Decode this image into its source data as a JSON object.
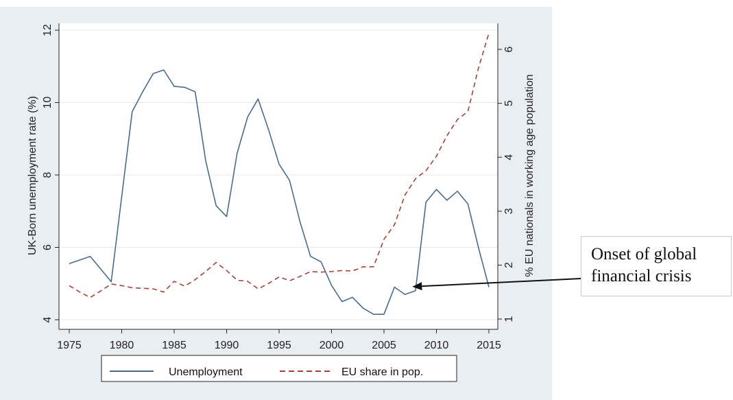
{
  "chart_data": {
    "type": "line",
    "title": "",
    "xlabel": "",
    "ylabel": "UK-Born unemployment rate (%)",
    "y2label": "% EU nationals in working age population",
    "xlim": [
      1975,
      2015
    ],
    "ylim": [
      4,
      12
    ],
    "y2lim": [
      1,
      6
    ],
    "x_ticks": [
      "1975",
      "1980",
      "1985",
      "1990",
      "1995",
      "2000",
      "2005",
      "2010",
      "2015"
    ],
    "y_ticks": [
      "4",
      "6",
      "8",
      "10",
      "12"
    ],
    "y2_ticks": [
      "1",
      "2",
      "3",
      "4",
      "5",
      "6"
    ],
    "grid": "horizontal",
    "legend_position": "bottom",
    "series": [
      {
        "name": "Unemployment",
        "axis": "left",
        "color": "#4a6a8c",
        "style": "solid",
        "x": [
          1975,
          1976,
          1977,
          1978,
          1979,
          1980,
          1981,
          1982,
          1983,
          1984,
          1985,
          1986,
          1987,
          1988,
          1989,
          1990,
          1991,
          1992,
          1993,
          1994,
          1995,
          1996,
          1997,
          1998,
          1999,
          2000,
          2001,
          2002,
          2003,
          2004,
          2005,
          2006,
          2007,
          2008,
          2009,
          2010,
          2011,
          2012,
          2013,
          2014,
          2015
        ],
        "values": [
          5.55,
          5.65,
          5.75,
          5.4,
          5.05,
          7.4,
          9.75,
          10.3,
          10.8,
          10.9,
          10.45,
          10.42,
          10.3,
          8.4,
          7.15,
          6.85,
          8.6,
          9.6,
          10.1,
          9.25,
          8.3,
          7.85,
          6.7,
          5.75,
          5.6,
          4.95,
          4.5,
          4.62,
          4.32,
          4.15,
          4.15,
          4.9,
          4.7,
          4.8,
          7.25,
          7.6,
          7.3,
          7.55,
          7.2,
          6.0,
          4.9
        ]
      },
      {
        "name": "EU share in pop.",
        "axis": "right",
        "color": "#a2413c",
        "style": "dashed",
        "x": [
          1975,
          1976,
          1977,
          1978,
          1979,
          1980,
          1981,
          1982,
          1983,
          1984,
          1985,
          1986,
          1987,
          1988,
          1989,
          1990,
          1991,
          1992,
          1993,
          1994,
          1995,
          1996,
          1997,
          1998,
          1999,
          2000,
          2001,
          2002,
          2003,
          2004,
          2005,
          2006,
          2007,
          2008,
          2009,
          2010,
          2011,
          2012,
          2013,
          2014,
          2015
        ],
        "values": [
          1.62,
          1.5,
          1.4,
          1.52,
          1.65,
          1.62,
          1.58,
          1.57,
          1.56,
          1.5,
          1.7,
          1.61,
          1.73,
          1.88,
          2.05,
          1.9,
          1.72,
          1.7,
          1.56,
          1.66,
          1.78,
          1.71,
          1.79,
          1.88,
          1.87,
          1.88,
          1.9,
          1.89,
          1.97,
          1.97,
          2.48,
          2.75,
          3.3,
          3.6,
          3.75,
          4.02,
          4.4,
          4.7,
          4.85,
          5.65,
          6.3
        ]
      }
    ],
    "annotation": {
      "lines": [
        "Onset of global",
        "financial crisis"
      ],
      "arrow_target_x": 2007.7,
      "arrow_target_y": 1.6
    }
  }
}
